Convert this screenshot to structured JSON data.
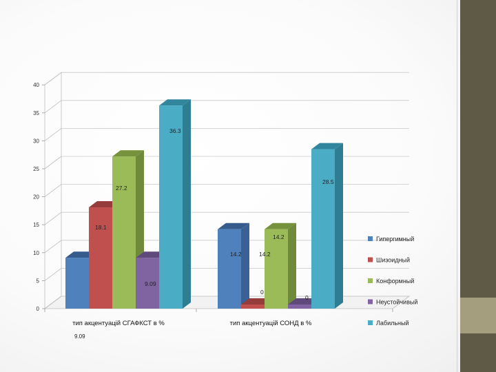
{
  "chart_data": {
    "type": "bar",
    "style": "3d-clustered-column",
    "categories": [
      "тип акцентуацій СГАФКСТ в %",
      "тип акцентуацій СОНД в %"
    ],
    "series": [
      {
        "name": "Гипергимный",
        "color": "#4f81bd",
        "side": "#3a6196",
        "top": "#355c8c",
        "values": [
          9.09,
          14.2
        ]
      },
      {
        "name": "Шизоидный",
        "color": "#c0504d",
        "side": "#8e3a38",
        "top": "#963c3a",
        "values": [
          18.1,
          0
        ]
      },
      {
        "name": "Конформный",
        "color": "#9bbb59",
        "side": "#6f8a3b",
        "top": "#76923c",
        "values": [
          27.2,
          14.2
        ]
      },
      {
        "name": "Неустойчивый",
        "color": "#8064a2",
        "side": "#5d4878",
        "top": "#604a7b",
        "values": [
          9.09,
          0
        ]
      },
      {
        "name": "Лабильный",
        "color": "#4bacc6",
        "side": "#2e7d92",
        "top": "#31859c",
        "values": [
          36.3,
          28.5
        ]
      }
    ],
    "data_labels": [
      [
        "",
        "18.1",
        "27.2",
        "9.09",
        "36.3"
      ],
      [
        "14.2",
        "0",
        "14.2",
        "0",
        "28.5"
      ]
    ],
    "extra_labels": [
      "14.2"
    ],
    "stray_text": "9.09",
    "yticks": [
      "0",
      "5",
      "10",
      "15",
      "20",
      "25",
      "30",
      "35",
      "40"
    ],
    "ylim": [
      0,
      40
    ],
    "grid": true,
    "legend_position": "right",
    "title": "",
    "xlabel": "",
    "ylabel": ""
  }
}
